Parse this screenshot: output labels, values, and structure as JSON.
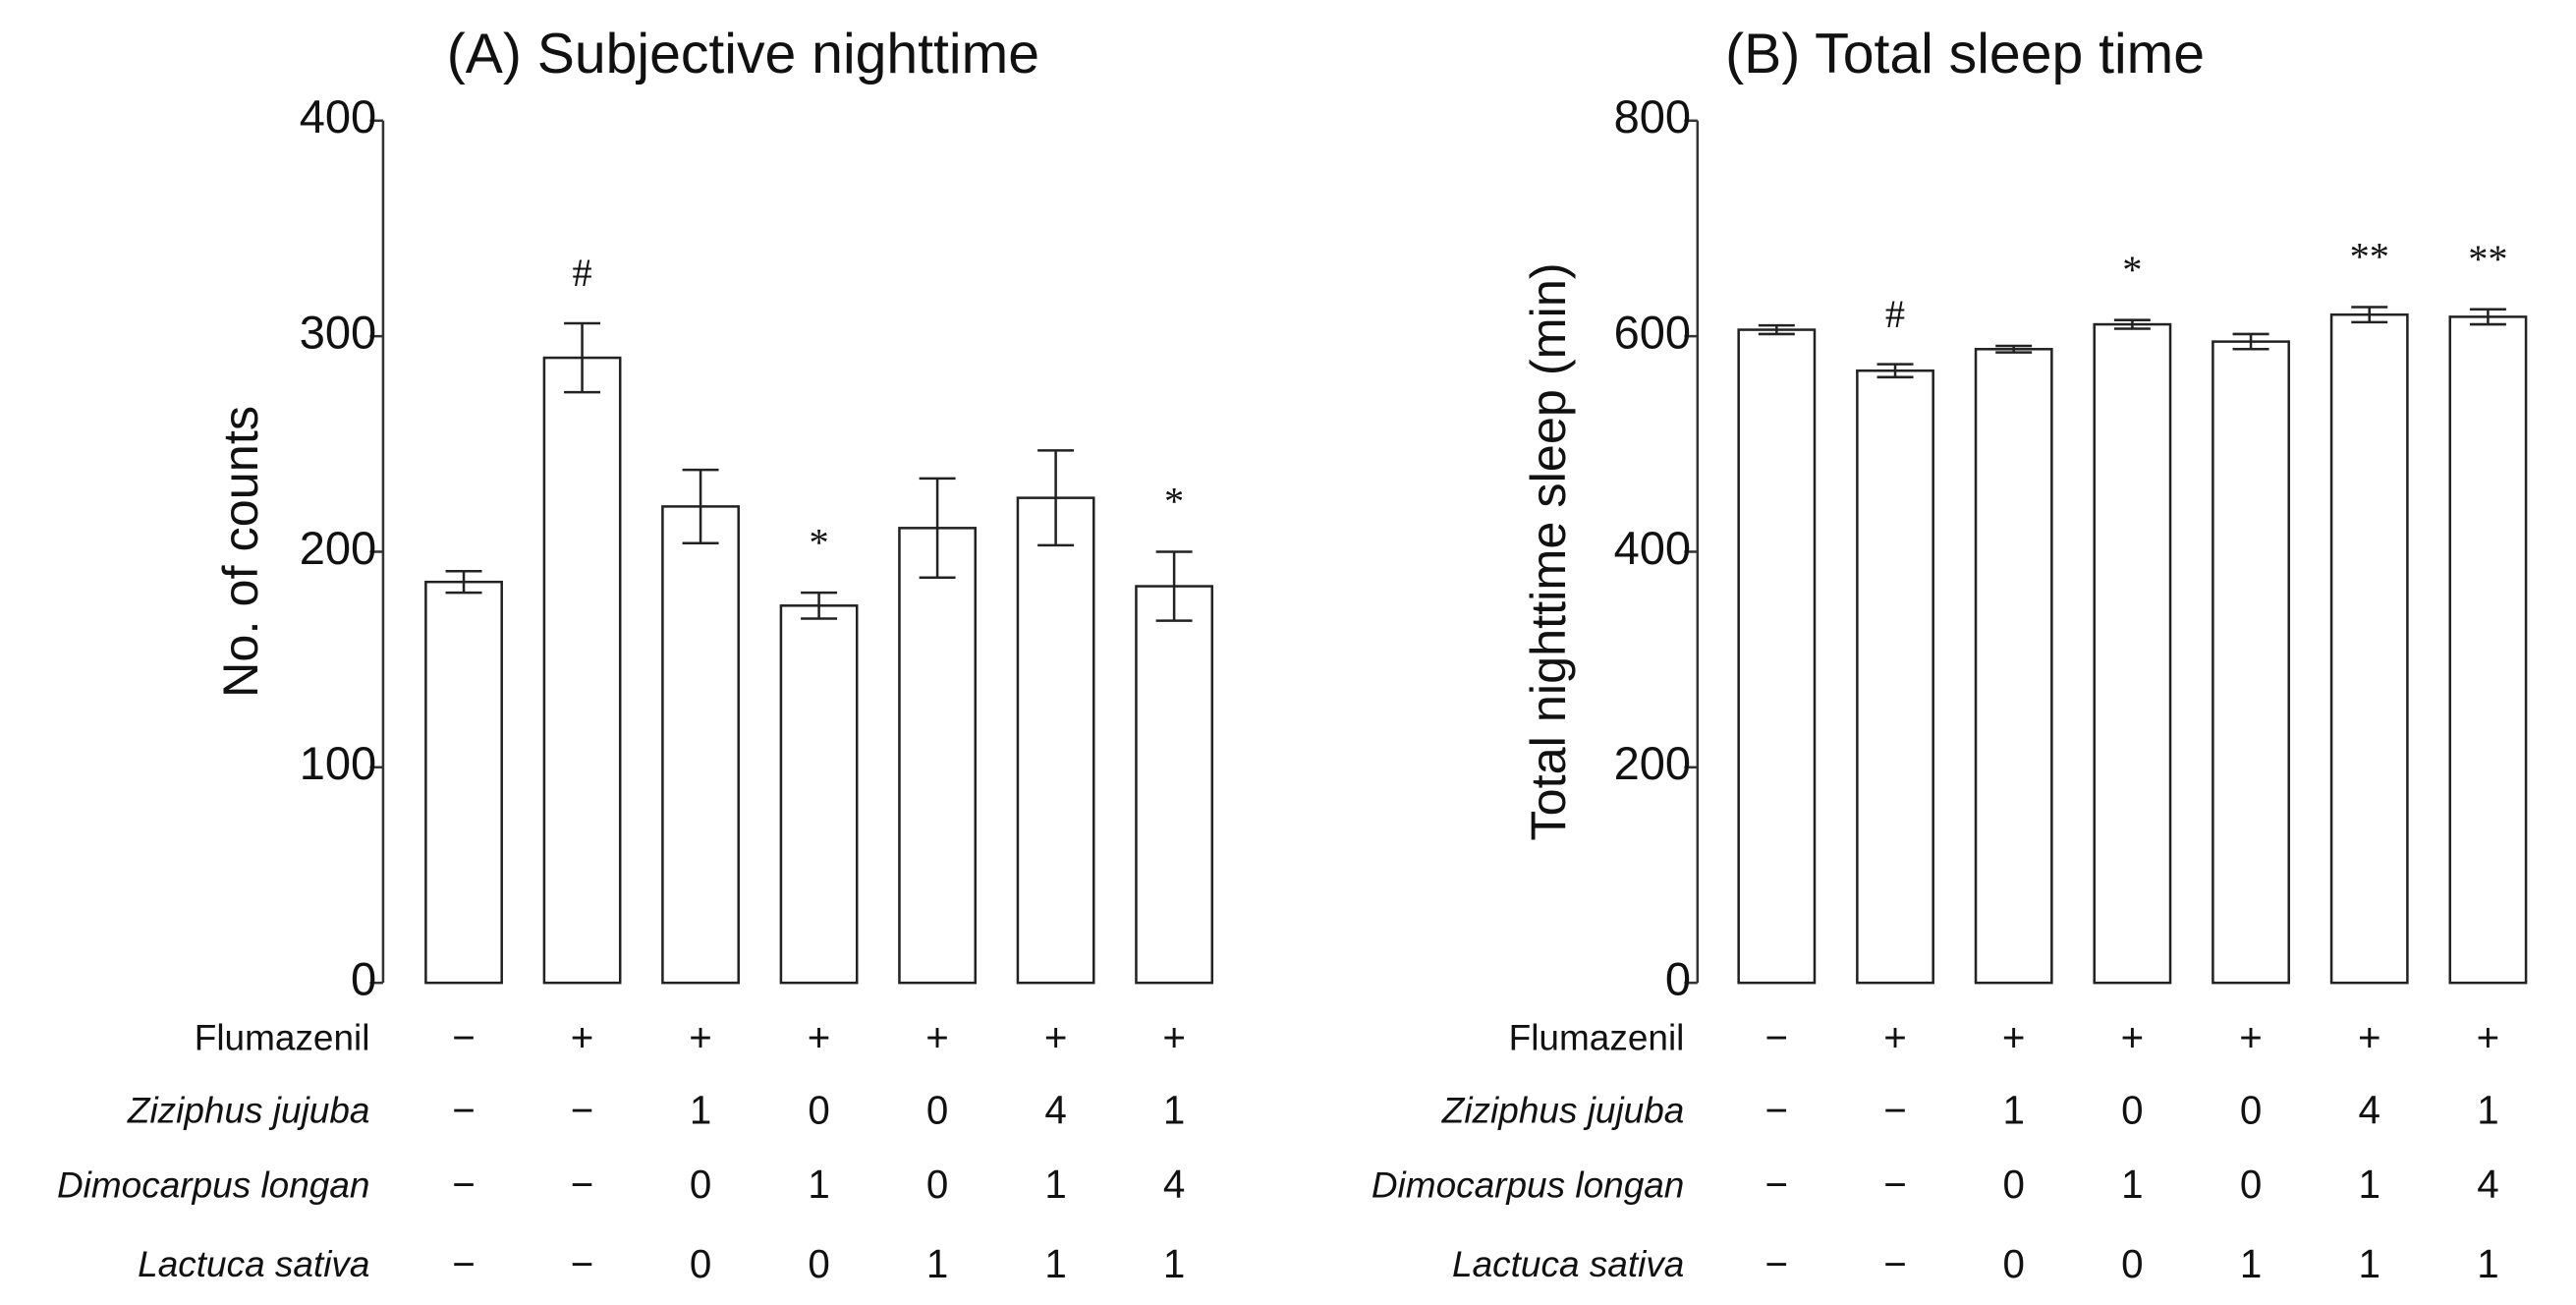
{
  "chart_data": [
    {
      "type": "bar",
      "title": "(A) Subjective nighttime",
      "y_label": "No. of counts",
      "categories": [
        null,
        null,
        null,
        null,
        null,
        null,
        null
      ],
      "values": [
        186,
        290,
        221,
        175,
        211,
        225,
        184
      ],
      "errors": [
        5,
        16,
        17,
        6,
        23,
        22,
        16
      ],
      "annotations": [
        null,
        "#",
        null,
        "*",
        null,
        null,
        "*"
      ],
      "color": "#ffffff",
      "ylim": [
        0,
        400
      ],
      "yticks": [
        0,
        100,
        200,
        300,
        400
      ],
      "treatments": [
        {
          "label": "Flumazenil",
          "cells": [
            "−",
            "+",
            "+",
            "+",
            "+",
            "+",
            "+"
          ]
        },
        {
          "label": "Ziziphus jujuba",
          "cells": [
            "−",
            "−",
            "1",
            "0",
            "0",
            "4",
            "1"
          ]
        },
        {
          "label": "Dimocarpus longan",
          "cells": [
            "−",
            "−",
            "0",
            "1",
            "0",
            "1",
            "4"
          ]
        },
        {
          "label": "Lactuca sativa",
          "cells": [
            "−",
            "−",
            "0",
            "0",
            "1",
            "1",
            "1"
          ]
        }
      ]
    },
    {
      "type": "bar",
      "title": "(B) Total sleep time",
      "y_label": "Total nighttime sleep (min)",
      "categories": [
        null,
        null,
        null,
        null,
        null,
        null,
        null
      ],
      "values": [
        606,
        568,
        588,
        611,
        595,
        620,
        618
      ],
      "errors": [
        4,
        6,
        3,
        4,
        7,
        7,
        7
      ],
      "annotations": [
        null,
        "#",
        null,
        "*",
        null,
        "**",
        "**"
      ],
      "color": "#ffffff",
      "ylim": [
        0,
        800
      ],
      "yticks": [
        0,
        200,
        400,
        600,
        800
      ],
      "treatments": [
        {
          "label": "Flumazenil",
          "cells": [
            "−",
            "+",
            "+",
            "+",
            "+",
            "+",
            "+"
          ]
        },
        {
          "label": "Ziziphus jujuba",
          "cells": [
            "−",
            "−",
            "1",
            "0",
            "0",
            "4",
            "1"
          ]
        },
        {
          "label": "Dimocarpus longan",
          "cells": [
            "−",
            "−",
            "0",
            "1",
            "0",
            "1",
            "4"
          ]
        },
        {
          "label": "Lactuca sativa",
          "cells": [
            "−",
            "−",
            "0",
            "0",
            "1",
            "1",
            "1"
          ]
        }
      ]
    }
  ]
}
